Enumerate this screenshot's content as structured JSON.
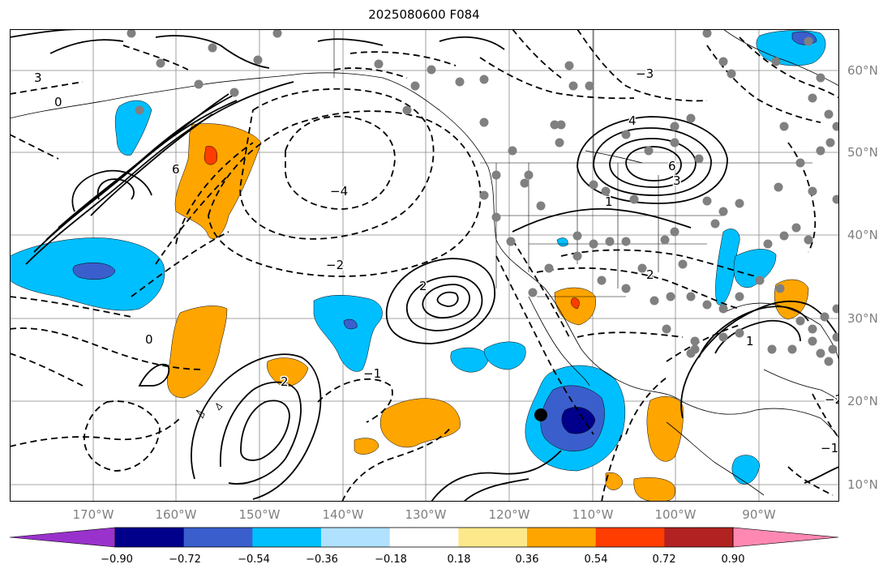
{
  "title": "2025080600 F084",
  "lon_labels": [
    "170°W",
    "160°W",
    "150°W",
    "140°W",
    "130°W",
    "120°W",
    "110°W",
    "100°W",
    "90°W"
  ],
  "lat_labels": [
    "60°N",
    "50°N",
    "40°N",
    "30°N",
    "20°N",
    "10°N"
  ],
  "colorbar": {
    "colors": [
      "#9932cc",
      "#00008b",
      "#3a5fcd",
      "#00bfff",
      "#b0e2ff",
      "#ffffff",
      "#fde98b",
      "#ffa500",
      "#ff3d00",
      "#b22222",
      "#ff88b2"
    ],
    "labels": [
      "−0.90",
      "−0.72",
      "−0.54",
      "−0.36",
      "−0.18",
      "0.18",
      "0.36",
      "0.54",
      "0.72",
      "0.90"
    ]
  },
  "contour_labels": [
    "6",
    "3",
    "0",
    "−4",
    "−2",
    "2",
    "−3",
    "4",
    "1",
    "−1",
    "0",
    "2",
    "−2",
    "1",
    "−1",
    "2",
    "6",
    "3"
  ],
  "marker": "black-dot"
}
